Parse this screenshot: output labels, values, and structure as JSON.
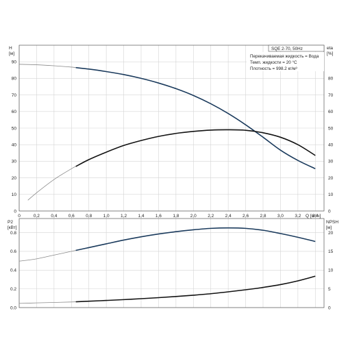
{
  "chart_data": [
    {
      "type": "line",
      "panel": "upper",
      "x_axis": {
        "label": "Q [м³/ч]",
        "range": [
          0,
          3.5
        ],
        "ticks": [
          "0",
          "0,2",
          "0,4",
          "0,6",
          "0,8",
          "1,0",
          "1,2",
          "1,4",
          "1,6",
          "1,8",
          "2,0",
          "2,2",
          "2,4",
          "2,6",
          "2,8",
          "3,0",
          "3,2",
          "3,4"
        ]
      },
      "y_left": {
        "label_top": "H",
        "label_bottom": "[м]",
        "range": [
          0,
          100
        ],
        "ticks": [
          "0",
          "10",
          "20",
          "30",
          "40",
          "50",
          "60",
          "70",
          "80",
          "90"
        ]
      },
      "y_right": {
        "label_top": "eta",
        "label_bottom": "[%]",
        "range": [
          0,
          100
        ],
        "ticks": [
          "0",
          "10",
          "20",
          "30",
          "40",
          "50",
          "60",
          "70",
          "80"
        ]
      },
      "grid": true,
      "info_box": {
        "model": "SQE 2-70, 50Hz",
        "lines": [
          "Перекачиваемая жидкость = Вода",
          "Темп. жидкости = 20 °C",
          "Плотность = 998.2 кг/м³"
        ]
      },
      "series": [
        {
          "axis": "left",
          "color": "#1a3a5c",
          "thin_until_x": 0.65,
          "x": [
            0,
            0.2,
            0.4,
            0.6,
            0.8,
            1.0,
            1.2,
            1.4,
            1.6,
            1.8,
            2.0,
            2.2,
            2.4,
            2.6,
            2.8,
            3.0,
            3.2,
            3.4
          ],
          "y": [
            88.5,
            88.2,
            87.6,
            86.8,
            85.6,
            84.1,
            82.3,
            80.0,
            77.2,
            73.8,
            69.7,
            64.7,
            58.8,
            52.0,
            44.5,
            36.7,
            30.5,
            25.5
          ]
        },
        {
          "axis": "right",
          "color": "#111111",
          "thin_until_x": 0.65,
          "x": [
            0.1,
            0.2,
            0.4,
            0.6,
            0.8,
            1.0,
            1.2,
            1.4,
            1.6,
            1.8,
            2.0,
            2.2,
            2.4,
            2.6,
            2.8,
            3.0,
            3.2,
            3.4
          ],
          "y": [
            6.5,
            11,
            19,
            25.5,
            31,
            35.5,
            39.5,
            42.5,
            45,
            46.8,
            48,
            48.8,
            49,
            48.7,
            47.2,
            44.5,
            40,
            33.5
          ]
        }
      ]
    },
    {
      "type": "line",
      "panel": "lower",
      "x_axis": {
        "range": [
          0,
          3.5
        ]
      },
      "y_left": {
        "label_top": "P2",
        "label_bottom": "[кВт]",
        "range": [
          0,
          0.95
        ],
        "ticks": [
          "0.0",
          "0.2",
          "0.4",
          "0.6",
          "0.8"
        ]
      },
      "y_right": {
        "label_top": "NPSH",
        "label_bottom": "[м]",
        "range": [
          0,
          23.75
        ],
        "ticks": [
          "0",
          "5",
          "10",
          "15",
          "20"
        ]
      },
      "grid": true,
      "series": [
        {
          "axis": "left",
          "color": "#1a3a5c",
          "thin_until_x": 0.65,
          "x": [
            0,
            0.2,
            0.4,
            0.6,
            0.8,
            1.0,
            1.2,
            1.4,
            1.6,
            1.8,
            2.0,
            2.2,
            2.4,
            2.6,
            2.8,
            3.0,
            3.2,
            3.4
          ],
          "y": [
            0.495,
            0.52,
            0.56,
            0.6,
            0.64,
            0.68,
            0.72,
            0.755,
            0.785,
            0.81,
            0.83,
            0.845,
            0.85,
            0.845,
            0.825,
            0.79,
            0.75,
            0.705
          ]
        },
        {
          "axis": "left",
          "color": "#111111",
          "thin_until_x": 0.65,
          "x": [
            0,
            0.2,
            0.4,
            0.6,
            0.8,
            1.0,
            1.2,
            1.4,
            1.6,
            1.8,
            2.0,
            2.2,
            2.4,
            2.6,
            2.8,
            3.0,
            3.2,
            3.4
          ],
          "y": [
            0.045,
            0.05,
            0.055,
            0.06,
            0.068,
            0.076,
            0.085,
            0.095,
            0.106,
            0.118,
            0.132,
            0.148,
            0.168,
            0.19,
            0.215,
            0.245,
            0.285,
            0.335
          ]
        }
      ]
    }
  ]
}
